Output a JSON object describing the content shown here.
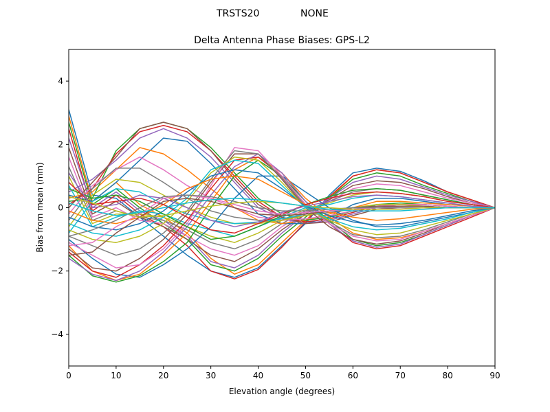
{
  "suptitle": {
    "left": "TRSTS20",
    "right": "NONE"
  },
  "chart_data": {
    "type": "line",
    "title": "Delta Antenna Phase Biases: GPS-L2",
    "xlabel": "Elevation angle (degrees)",
    "ylabel": "Bias from mean (mm)",
    "xlim": [
      0,
      90
    ],
    "ylim": [
      -5,
      5
    ],
    "xticks": [
      0,
      10,
      20,
      30,
      40,
      50,
      60,
      70,
      80,
      90
    ],
    "yticks": [
      -4,
      -2,
      0,
      2,
      4
    ],
    "grid": false,
    "legend": "none",
    "x": [
      0,
      5,
      10,
      15,
      20,
      25,
      30,
      35,
      40,
      45,
      50,
      55,
      60,
      65,
      70,
      75,
      80,
      85,
      90
    ],
    "colors": [
      "#1f77b4",
      "#ff7f0e",
      "#2ca02c",
      "#d62728",
      "#9467bd",
      "#8c564b",
      "#e377c2",
      "#7f7f7f",
      "#bcbd22",
      "#17becf"
    ],
    "series": [
      {
        "values": [
          3.1,
          0.4,
          0.3,
          -0.3,
          -0.9,
          -1.5,
          -2.0,
          -2.2,
          -1.9,
          -1.2,
          -0.5,
          0.4,
          1.1,
          1.25,
          1.15,
          0.85,
          0.5,
          0.25,
          0
        ]
      },
      {
        "values": [
          2.9,
          0.2,
          0.8,
          0.1,
          -0.3,
          -0.8,
          -1.6,
          -2.1,
          -1.8,
          -1.1,
          -0.4,
          0.3,
          1.0,
          1.2,
          1.1,
          0.8,
          0.5,
          0.25,
          0
        ]
      },
      {
        "values": [
          2.7,
          0.1,
          0.6,
          0.0,
          -0.5,
          -1.0,
          -1.8,
          -2.0,
          -1.6,
          -0.9,
          -0.3,
          0.3,
          0.9,
          1.1,
          1.0,
          0.7,
          0.45,
          0.2,
          0
        ]
      },
      {
        "values": [
          2.5,
          -0.1,
          0.4,
          -0.2,
          -0.6,
          -1.2,
          -2.0,
          -2.25,
          -1.95,
          -1.25,
          -0.45,
          0.35,
          1.0,
          1.2,
          1.1,
          0.8,
          0.5,
          0.25,
          0
        ]
      },
      {
        "values": [
          2.2,
          0.0,
          0.5,
          -0.1,
          -0.4,
          -0.9,
          -1.7,
          -1.9,
          -1.5,
          -0.8,
          -0.2,
          0.3,
          0.8,
          1.0,
          0.9,
          0.65,
          0.4,
          0.2,
          0
        ]
      },
      {
        "values": [
          1.9,
          -0.2,
          0.2,
          -0.3,
          -0.6,
          -1.0,
          -1.5,
          -1.7,
          -1.3,
          -0.7,
          -0.2,
          0.25,
          0.7,
          0.85,
          0.8,
          0.6,
          0.35,
          0.15,
          0
        ]
      },
      {
        "values": [
          1.6,
          -0.3,
          0.0,
          -0.4,
          -0.5,
          -0.9,
          -1.3,
          -1.5,
          -1.2,
          -0.6,
          -0.15,
          0.2,
          0.6,
          0.75,
          0.7,
          0.5,
          0.3,
          0.15,
          0
        ]
      },
      {
        "values": [
          1.3,
          -0.4,
          -0.1,
          -0.3,
          -0.4,
          -0.7,
          -1.1,
          -1.3,
          -1.0,
          -0.5,
          -0.1,
          0.2,
          0.5,
          0.6,
          0.55,
          0.4,
          0.25,
          0.1,
          0
        ]
      },
      {
        "values": [
          1.0,
          -0.5,
          -0.2,
          -0.2,
          -0.3,
          -0.6,
          -0.9,
          -1.1,
          -0.8,
          -0.4,
          -0.05,
          0.15,
          0.4,
          0.5,
          0.45,
          0.35,
          0.2,
          0.1,
          0
        ]
      },
      {
        "values": [
          0.7,
          -0.6,
          -0.3,
          -0.1,
          -0.2,
          -0.5,
          -0.7,
          -0.9,
          -0.6,
          -0.3,
          0.0,
          0.1,
          0.3,
          0.4,
          0.35,
          0.25,
          0.15,
          0.05,
          0
        ]
      },
      {
        "values": [
          0.4,
          0.2,
          0.8,
          1.5,
          2.2,
          2.1,
          1.4,
          0.6,
          -0.2,
          -0.5,
          -0.5,
          -0.3,
          0.1,
          0.3,
          0.3,
          0.2,
          0.1,
          0.05,
          0
        ]
      },
      {
        "values": [
          0.3,
          0.5,
          1.2,
          1.9,
          1.7,
          1.2,
          0.6,
          0.0,
          -0.4,
          -0.5,
          -0.4,
          -0.2,
          0.0,
          0.2,
          0.2,
          0.15,
          0.1,
          0.05,
          0
        ]
      },
      {
        "values": [
          0.2,
          0.3,
          1.8,
          2.5,
          2.7,
          2.5,
          1.9,
          1.1,
          0.3,
          -0.2,
          -0.4,
          -0.3,
          -0.1,
          0.1,
          0.15,
          0.1,
          0.05,
          0.0,
          0
        ]
      },
      {
        "values": [
          0.1,
          0.6,
          1.7,
          2.4,
          2.6,
          2.4,
          1.8,
          1.0,
          0.2,
          -0.3,
          -0.45,
          -0.35,
          -0.15,
          0.05,
          0.1,
          0.1,
          0.05,
          0.0,
          0
        ]
      },
      {
        "values": [
          0.5,
          0.9,
          1.5,
          2.2,
          2.5,
          2.2,
          1.6,
          0.8,
          0.0,
          -0.35,
          -0.5,
          -0.4,
          -0.2,
          0.0,
          0.05,
          0.05,
          0.0,
          0.0,
          0
        ]
      },
      {
        "values": [
          0.0,
          0.8,
          1.6,
          2.5,
          2.7,
          2.5,
          1.8,
          0.9,
          0.1,
          -0.3,
          -0.5,
          -0.45,
          -0.25,
          -0.05,
          0.0,
          0.0,
          0.0,
          0.0,
          0
        ]
      },
      {
        "values": [
          -0.2,
          0.7,
          1.2,
          1.6,
          1.2,
          0.7,
          0.3,
          0.0,
          -0.3,
          -0.4,
          -0.35,
          -0.25,
          -0.1,
          0.05,
          0.1,
          0.1,
          0.05,
          0.0,
          0
        ]
      },
      {
        "values": [
          -0.4,
          0.6,
          1.25,
          1.25,
          0.8,
          0.3,
          -0.1,
          -0.3,
          -0.4,
          -0.35,
          -0.25,
          -0.15,
          -0.05,
          0.05,
          0.05,
          0.05,
          0.0,
          0.0,
          0
        ]
      },
      {
        "values": [
          -0.6,
          0.4,
          0.9,
          0.8,
          0.4,
          0.0,
          -0.3,
          -0.5,
          -0.5,
          -0.4,
          -0.25,
          -0.1,
          0.0,
          0.1,
          0.1,
          0.05,
          0.0,
          0.0,
          0
        ]
      },
      {
        "values": [
          -0.8,
          0.2,
          0.6,
          0.5,
          0.1,
          -0.2,
          -0.4,
          -0.5,
          -0.45,
          -0.35,
          -0.2,
          -0.1,
          0.0,
          0.05,
          0.05,
          0.05,
          0.0,
          0.0,
          0
        ]
      },
      {
        "values": [
          -1.0,
          -1.6,
          -2.1,
          -2.2,
          -1.8,
          -1.3,
          -0.6,
          0.3,
          1.0,
          1.0,
          0.5,
          0.0,
          -0.4,
          -0.6,
          -0.6,
          -0.45,
          -0.3,
          -0.15,
          0
        ]
      },
      {
        "values": [
          -1.2,
          -2.0,
          -2.3,
          -2.1,
          -1.5,
          -0.8,
          0.2,
          1.2,
          1.6,
          1.1,
          0.3,
          -0.3,
          -0.8,
          -1.0,
          -0.95,
          -0.75,
          -0.5,
          -0.25,
          0
        ]
      },
      {
        "values": [
          -1.5,
          -2.15,
          -2.35,
          -2.15,
          -1.7,
          -1.1,
          0.0,
          1.0,
          1.5,
          1.0,
          0.2,
          -0.4,
          -1.0,
          -1.2,
          -1.1,
          -0.85,
          -0.55,
          -0.25,
          0
        ]
      },
      {
        "values": [
          -1.4,
          -2.0,
          -2.2,
          -1.8,
          -1.2,
          -0.4,
          0.6,
          1.5,
          1.6,
          1.0,
          0.1,
          -0.5,
          -1.1,
          -1.3,
          -1.2,
          -0.9,
          -0.6,
          -0.3,
          0
        ]
      },
      {
        "values": [
          -1.6,
          -2.1,
          -2.3,
          -2.0,
          -1.4,
          -0.6,
          0.4,
          1.3,
          1.7,
          1.1,
          0.2,
          -0.5,
          -1.05,
          -1.25,
          -1.15,
          -0.85,
          -0.55,
          -0.25,
          0
        ]
      },
      {
        "values": [
          -1.3,
          -1.9,
          -2.0,
          -1.6,
          -1.0,
          -0.2,
          0.8,
          1.7,
          1.7,
          0.9,
          0.0,
          -0.6,
          -1.0,
          -1.15,
          -1.05,
          -0.8,
          -0.5,
          -0.25,
          0
        ]
      },
      {
        "values": [
          -1.1,
          -1.5,
          -1.9,
          -1.8,
          -1.3,
          -0.5,
          0.7,
          1.9,
          1.8,
          1.0,
          0.1,
          -0.5,
          -0.9,
          -1.05,
          -1.0,
          -0.75,
          -0.5,
          -0.25,
          0
        ]
      },
      {
        "values": [
          -0.9,
          -1.2,
          -1.5,
          -1.3,
          -0.8,
          -0.1,
          0.9,
          1.8,
          1.7,
          0.95,
          0.05,
          -0.45,
          -0.85,
          -0.95,
          -0.9,
          -0.7,
          -0.45,
          -0.2,
          0
        ]
      },
      {
        "values": [
          -0.7,
          -1.0,
          -1.1,
          -0.9,
          -0.5,
          0.2,
          1.1,
          1.6,
          1.5,
          0.8,
          0.0,
          -0.4,
          -0.7,
          -0.85,
          -0.8,
          -0.6,
          -0.4,
          -0.2,
          0
        ]
      },
      {
        "values": [
          -0.5,
          -0.8,
          -0.9,
          -0.7,
          -0.3,
          0.3,
          1.2,
          1.5,
          1.4,
          0.7,
          0.0,
          -0.35,
          -0.6,
          -0.7,
          -0.65,
          -0.5,
          -0.35,
          -0.15,
          0
        ]
      },
      {
        "values": [
          -0.3,
          -0.6,
          -0.7,
          -0.5,
          -0.1,
          0.5,
          1.0,
          1.2,
          1.1,
          0.6,
          0.05,
          -0.25,
          -0.45,
          -0.55,
          -0.5,
          -0.4,
          -0.25,
          -0.1,
          0
        ]
      },
      {
        "values": [
          -0.1,
          -0.4,
          -0.5,
          -0.3,
          0.1,
          0.6,
          0.9,
          1.0,
          0.9,
          0.5,
          0.1,
          -0.15,
          -0.3,
          -0.4,
          -0.35,
          -0.25,
          -0.15,
          -0.05,
          0
        ]
      },
      {
        "values": [
          0.6,
          0.3,
          0.4,
          0.2,
          -0.2,
          -0.6,
          -1.0,
          -0.9,
          -0.6,
          -0.25,
          0.1,
          0.35,
          0.55,
          0.6,
          0.55,
          0.4,
          0.25,
          0.1,
          0
        ]
      },
      {
        "values": [
          0.8,
          0.1,
          0.2,
          0.3,
          0.1,
          -0.3,
          -0.7,
          -0.8,
          -0.5,
          -0.2,
          0.1,
          0.3,
          0.45,
          0.5,
          0.45,
          0.35,
          0.2,
          0.1,
          0
        ]
      },
      {
        "values": [
          1.1,
          0.0,
          0.1,
          0.4,
          0.3,
          0.0,
          -0.4,
          -0.6,
          -0.45,
          -0.15,
          0.05,
          0.2,
          0.35,
          0.4,
          0.35,
          0.25,
          0.15,
          0.05,
          0
        ]
      },
      {
        "values": [
          -1.5,
          -1.4,
          -0.8,
          -0.3,
          0.2,
          0.3,
          0.2,
          0.0,
          -0.2,
          -0.25,
          -0.2,
          -0.1,
          0.0,
          0.05,
          0.05,
          0.05,
          0.0,
          0.0,
          0
        ]
      },
      {
        "values": [
          -1.2,
          -1.1,
          -0.6,
          -0.2,
          0.3,
          0.4,
          0.3,
          0.1,
          -0.1,
          -0.2,
          -0.15,
          -0.1,
          -0.05,
          0.0,
          0.0,
          0.0,
          0.0,
          0.0,
          0
        ]
      },
      {
        "values": [
          -0.9,
          -0.7,
          -0.4,
          0.0,
          0.35,
          0.4,
          0.35,
          0.2,
          0.0,
          -0.1,
          -0.1,
          -0.05,
          0.0,
          0.0,
          0.0,
          0.0,
          0.0,
          0.0,
          0
        ]
      },
      {
        "values": [
          0.35,
          0.15,
          -0.1,
          -0.3,
          -0.25,
          -0.1,
          0.05,
          0.15,
          0.2,
          0.15,
          0.05,
          0.0,
          -0.05,
          -0.05,
          -0.05,
          0.0,
          0.0,
          0.0,
          0
        ]
      },
      {
        "values": [
          0.15,
          -0.1,
          -0.25,
          -0.15,
          0.0,
          0.15,
          0.25,
          0.3,
          0.25,
          0.15,
          0.05,
          -0.05,
          -0.1,
          -0.1,
          -0.1,
          -0.05,
          0.0,
          0.0,
          0
        ]
      }
    ]
  }
}
